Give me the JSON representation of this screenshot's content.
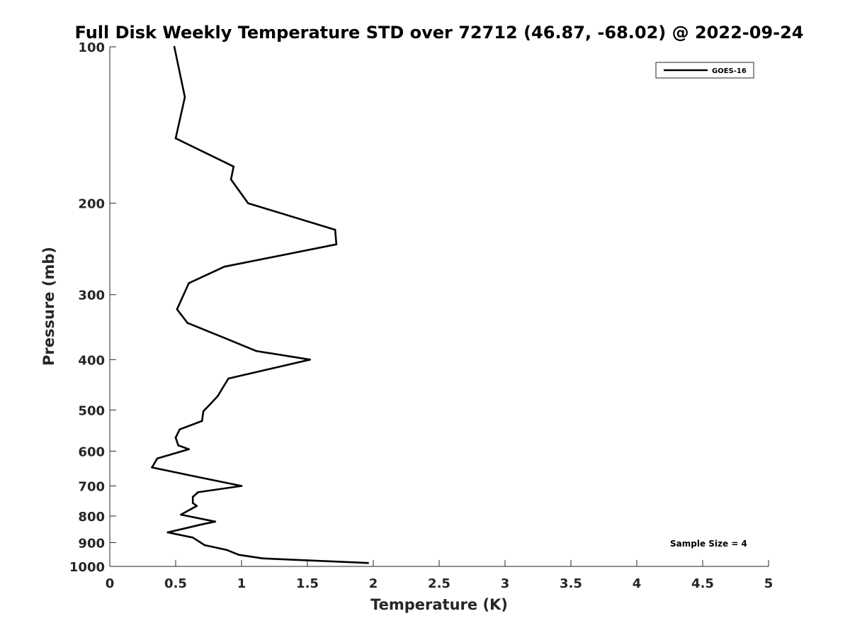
{
  "chart_data": {
    "type": "line",
    "title": "Full Disk Weekly Temperature STD over 72712 (46.87, -68.02) @ 2022-09-24",
    "xlabel": "Temperature (K)",
    "ylabel": "Pressure (mb)",
    "xlim": [
      0,
      5
    ],
    "ylim": [
      100,
      1000
    ],
    "y_scale": "log",
    "y_reversed": true,
    "x_ticks": [
      "0",
      "0.5",
      "1",
      "1.5",
      "2",
      "2.5",
      "3",
      "3.5",
      "4",
      "4.5",
      "5"
    ],
    "y_ticks": [
      "100",
      "200",
      "300",
      "400",
      "500",
      "600",
      "700",
      "800",
      "900",
      "1000"
    ],
    "grid": false,
    "legend_position": "top-right",
    "annotation": "Sample Size = 4",
    "line_color": "#000000",
    "series": [
      {
        "name": "GOES-16",
        "points": [
          [
            0.49,
            100
          ],
          [
            0.57,
            125
          ],
          [
            0.5,
            150
          ],
          [
            0.94,
            170
          ],
          [
            0.92,
            180
          ],
          [
            1.05,
            200
          ],
          [
            1.71,
            225
          ],
          [
            1.72,
            240
          ],
          [
            0.87,
            265
          ],
          [
            0.6,
            285
          ],
          [
            0.51,
            320
          ],
          [
            0.59,
            340
          ],
          [
            0.89,
            365
          ],
          [
            1.11,
            385
          ],
          [
            1.52,
            400
          ],
          [
            0.9,
            435
          ],
          [
            0.82,
            470
          ],
          [
            0.77,
            485
          ],
          [
            0.71,
            503
          ],
          [
            0.7,
            525
          ],
          [
            0.53,
            545
          ],
          [
            0.5,
            565
          ],
          [
            0.52,
            585
          ],
          [
            0.6,
            595
          ],
          [
            0.36,
            620
          ],
          [
            0.32,
            645
          ],
          [
            0.57,
            665
          ],
          [
            1.0,
            700
          ],
          [
            0.67,
            720
          ],
          [
            0.63,
            735
          ],
          [
            0.63,
            755
          ],
          [
            0.66,
            765
          ],
          [
            0.54,
            795
          ],
          [
            0.8,
            820
          ],
          [
            0.7,
            830
          ],
          [
            0.44,
            860
          ],
          [
            0.63,
            880
          ],
          [
            0.72,
            910
          ],
          [
            0.89,
            930
          ],
          [
            0.98,
            950
          ],
          [
            1.16,
            965
          ],
          [
            1.96,
            985
          ]
        ]
      }
    ]
  }
}
